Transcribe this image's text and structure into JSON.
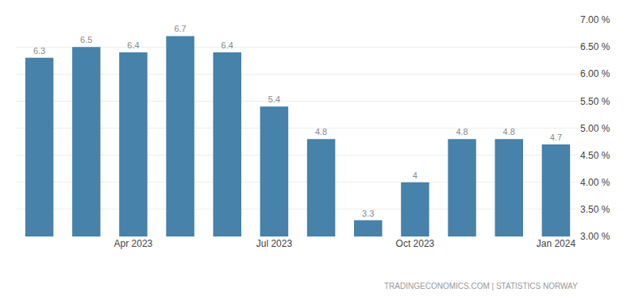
{
  "chart_data": {
    "type": "bar",
    "categories": [
      null,
      null,
      "Apr 2023",
      null,
      null,
      "Jul 2023",
      null,
      null,
      "Oct 2023",
      null,
      null,
      "Jan 2024"
    ],
    "values": [
      6.3,
      6.5,
      6.4,
      6.7,
      6.4,
      5.4,
      4.8,
      3.3,
      4.0,
      4.8,
      4.8,
      4.7
    ],
    "color": "#4682a9",
    "ylim": [
      3.0,
      7.0
    ],
    "yticks": [
      {
        "value": 3.0,
        "label": "3.00 %"
      },
      {
        "value": 3.5,
        "label": "3.50 %"
      },
      {
        "value": 4.0,
        "label": "4.00 %"
      },
      {
        "value": 4.5,
        "label": "4.50 %"
      },
      {
        "value": 5.0,
        "label": "5.00 %"
      },
      {
        "value": 5.5,
        "label": "5.50 %"
      },
      {
        "value": 6.0,
        "label": "6.00 %"
      },
      {
        "value": 6.5,
        "label": "6.50 %"
      },
      {
        "value": 7.0,
        "label": "7.00 %"
      }
    ],
    "grid": true,
    "data_labels": true,
    "annotations": [
      "TRADINGECONOMICS.COM | STATISTICS NORWAY"
    ]
  }
}
